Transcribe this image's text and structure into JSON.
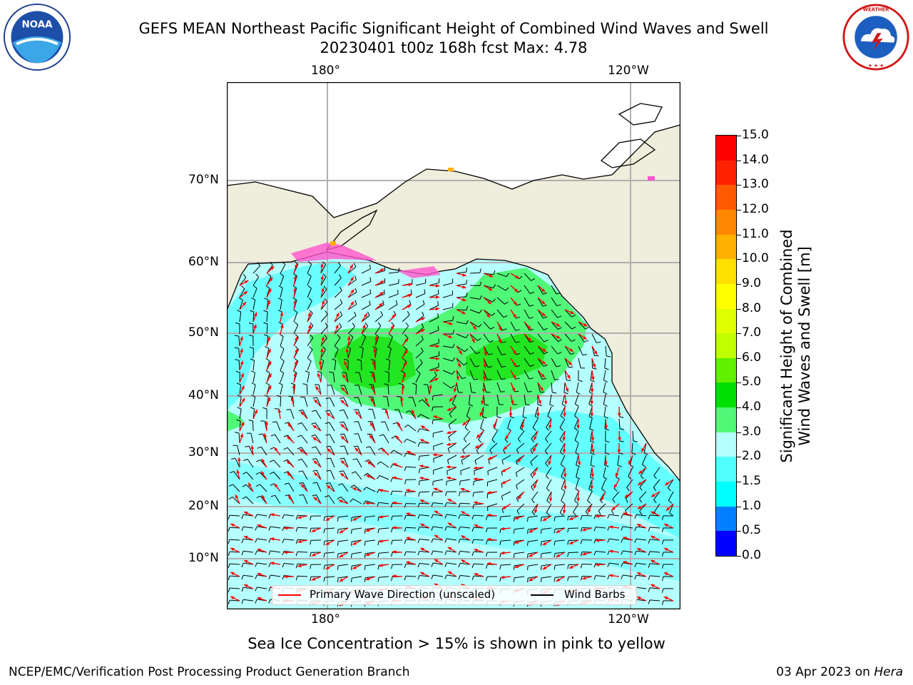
{
  "header": {
    "title_line1": "GEFS MEAN Northeast Pacific Significant Height of Combined Wind Waves and Swell",
    "title_line2": "20230401 t00z 168h fcst   Max: 4.78"
  },
  "logos": {
    "left": {
      "icon": "noaa-logo-icon",
      "text": "NOAA",
      "ring_text": "NATIONAL OCEANIC AND ATMOSPHERIC ADMINISTRATION · U.S. DEPARTMENT OF COMMERCE"
    },
    "right": {
      "icon": "nws-logo-icon",
      "ring_text": "NATIONAL WEATHER SERVICE"
    }
  },
  "map": {
    "lon_labels_top": [
      "180°",
      "120°W"
    ],
    "lon_labels_bottom": [
      "180°",
      "120°W"
    ],
    "lat_labels": [
      "70°N",
      "60°N",
      "50°N",
      "40°N",
      "30°N",
      "20°N",
      "10°N"
    ],
    "legend": {
      "wave_label": "Primary Wave Direction (unscaled)",
      "wave_color": "#ff0000",
      "wind_label": "Wind Barbs",
      "wind_color": "#000000"
    },
    "colors": {
      "land": "#efeddb",
      "ocean_base": "#b6ffff",
      "grid": "#b0b0b0"
    }
  },
  "colorbar": {
    "label_line1": "Significant Height of Combined",
    "label_line2": "Wind Waves and Swell [m]",
    "ticks": [
      "15.0",
      "14.0",
      "13.0",
      "12.0",
      "11.0",
      "10.0",
      "9.0",
      "8.0",
      "7.0",
      "6.0",
      "5.0",
      "4.0",
      "3.0",
      "2.0",
      "1.5",
      "1.0",
      "0.5",
      "0.0"
    ],
    "colors_top_to_bottom": [
      "#ff0000",
      "#ff2200",
      "#ff5a00",
      "#ff8800",
      "#ffb000",
      "#ffe000",
      "#ffff00",
      "#e0ff00",
      "#c0ff00",
      "#60f000",
      "#00e000",
      "#50f878",
      "#b6ffff",
      "#50ffff",
      "#00ffff",
      "#0080ff",
      "#0000ff"
    ]
  },
  "footer": {
    "note": "Sea Ice Concentration > 15% is shown in pink to yellow",
    "left": "NCEP/EMC/Verification Post Processing Product Generation Branch",
    "right_date": "03 Apr 2023 on",
    "right_host": "Hera"
  }
}
